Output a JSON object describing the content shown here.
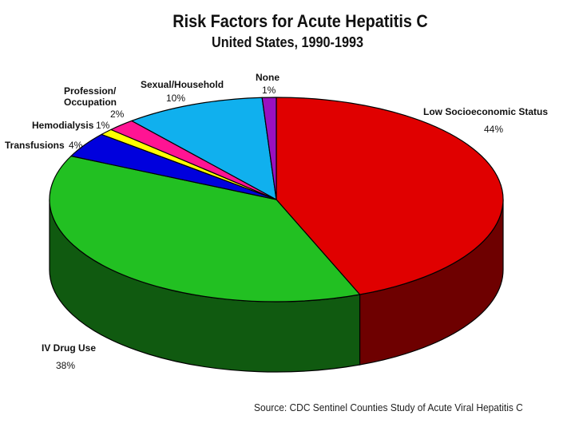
{
  "chart_data": {
    "type": "pie",
    "title": "Risk Factors for Acute Hepatitis C",
    "subtitle": "United States, 1990-1993",
    "slices": [
      {
        "label": "Low Socioeconomic Status",
        "value": 44,
        "value_label": "44%",
        "color": "#e00000",
        "side_color": "#6e0000"
      },
      {
        "label": "IV Drug Use",
        "value": 38,
        "value_label": "38%",
        "color": "#22c022",
        "side_color": "#105a10"
      },
      {
        "label": "Transfusions",
        "value": 4,
        "value_label": "4%",
        "color": "#0000dd",
        "side_color": "#00006a"
      },
      {
        "label": "Hemodialysis",
        "value": 1,
        "value_label": "1%",
        "color": "#ffff00",
        "side_color": "#8a8a00"
      },
      {
        "label": "Profession/\nOccupation",
        "value": 2,
        "value_label": "2%",
        "color": "#ff1493",
        "side_color": "#80104a"
      },
      {
        "label": "Sexual/Household",
        "value": 10,
        "value_label": "10%",
        "color": "#10b0ee",
        "side_color": "#075a78"
      },
      {
        "label": "None",
        "value": 1,
        "value_label": "1%",
        "color": "#9a10c0",
        "side_color": "#4a0860"
      }
    ],
    "source": "Source: CDC Sentinel Counties Study of Acute Viral Hepatitis C"
  }
}
